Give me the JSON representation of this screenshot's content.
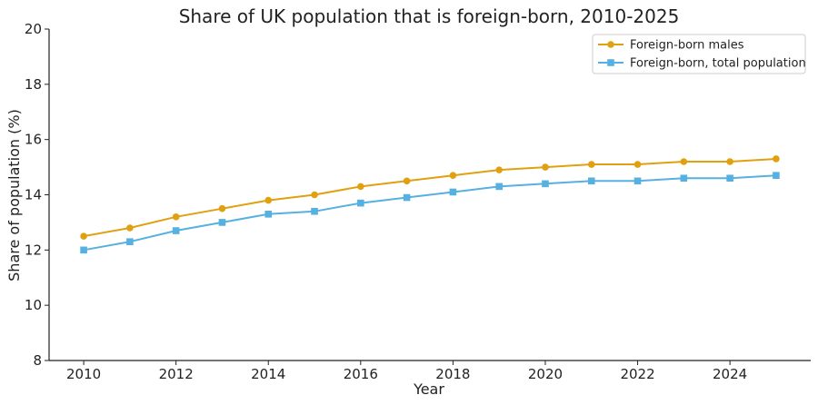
{
  "chart_data": {
    "type": "line",
    "title": "Share of UK population that is foreign-born, 2010-2025",
    "xlabel": "Year",
    "ylabel": "Share of population (%)",
    "x": [
      2010,
      2011,
      2012,
      2013,
      2014,
      2015,
      2016,
      2017,
      2018,
      2019,
      2020,
      2021,
      2022,
      2023,
      2024,
      2025
    ],
    "xlim": [
      2009.25,
      2025.75
    ],
    "ylim": [
      8,
      20
    ],
    "x_ticks": [
      2010,
      2012,
      2014,
      2016,
      2018,
      2020,
      2022,
      2024
    ],
    "y_ticks": [
      8,
      10,
      12,
      14,
      16,
      18,
      20
    ],
    "grid": false,
    "legend_position": "top-right",
    "series": [
      {
        "name": "Foreign-born males",
        "color": "#E0A010",
        "marker": "circle",
        "values": [
          12.5,
          12.8,
          13.2,
          13.5,
          13.8,
          14.0,
          14.3,
          14.5,
          14.7,
          14.9,
          15.0,
          15.1,
          15.1,
          15.2,
          15.2,
          15.3
        ]
      },
      {
        "name": "Foreign-born, total population",
        "color": "#56B0E0",
        "marker": "square",
        "values": [
          12.0,
          12.3,
          12.7,
          13.0,
          13.3,
          13.4,
          13.7,
          13.9,
          14.1,
          14.3,
          14.4,
          14.5,
          14.5,
          14.6,
          14.6,
          14.7
        ]
      }
    ]
  }
}
